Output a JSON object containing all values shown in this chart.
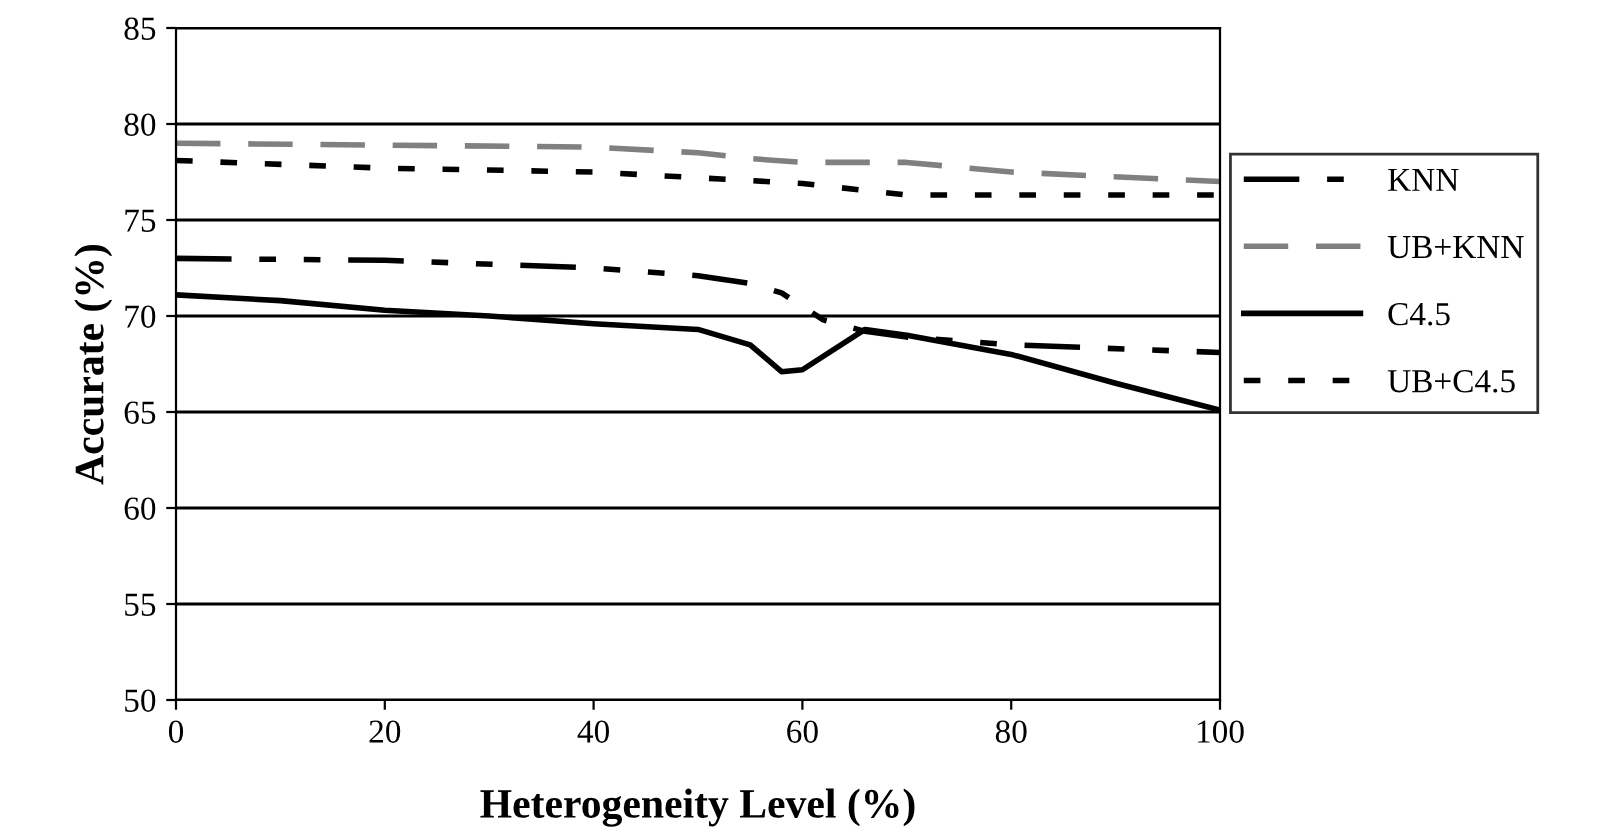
{
  "chart_data": {
    "type": "line",
    "xlabel": "Heterogeneity Level (%)",
    "ylabel": "Accurate (%)",
    "xlim": [
      0,
      100
    ],
    "xticks": [
      0,
      20,
      40,
      60,
      80,
      100
    ],
    "ylim": [
      50,
      85
    ],
    "yticks": [
      50,
      55,
      60,
      65,
      70,
      75,
      80,
      85
    ],
    "grid": "y",
    "legend": "right",
    "marker": "none",
    "series": [
      {
        "name": "KNN",
        "color": "#000000",
        "line_style": "dashdotdot",
        "x": [
          0,
          20,
          40,
          50,
          55,
          58,
          62,
          66,
          70,
          80,
          100
        ],
        "values": [
          73,
          72.9,
          72.5,
          72.1,
          71.7,
          71.2,
          69.8,
          69.2,
          68.9,
          68.5,
          68.1
        ]
      },
      {
        "name": "UB+KNN",
        "color": "#808080",
        "line_style": "dashed",
        "x": [
          0,
          20,
          40,
          50,
          55,
          60,
          70,
          80,
          100
        ],
        "values": [
          79,
          78.9,
          78.8,
          78.5,
          78.2,
          78.0,
          78.0,
          77.5,
          77
        ]
      },
      {
        "name": "C4.5",
        "color": "#000000",
        "line_style": "solid",
        "x": [
          0,
          10,
          20,
          30,
          40,
          50,
          55,
          58,
          60,
          66,
          70,
          80,
          90,
          100
        ],
        "values": [
          71.1,
          70.8,
          70.3,
          70,
          69.6,
          69.3,
          68.5,
          67.1,
          67.2,
          69.3,
          69.0,
          68,
          66.5,
          65.1
        ]
      },
      {
        "name": "UB+C4.5",
        "color": "#000000",
        "line_style": "dotted",
        "x": [
          0,
          20,
          40,
          50,
          60,
          70,
          100
        ],
        "values": [
          78.1,
          77.7,
          77.5,
          77.2,
          76.9,
          76.3,
          76.3
        ]
      }
    ]
  }
}
